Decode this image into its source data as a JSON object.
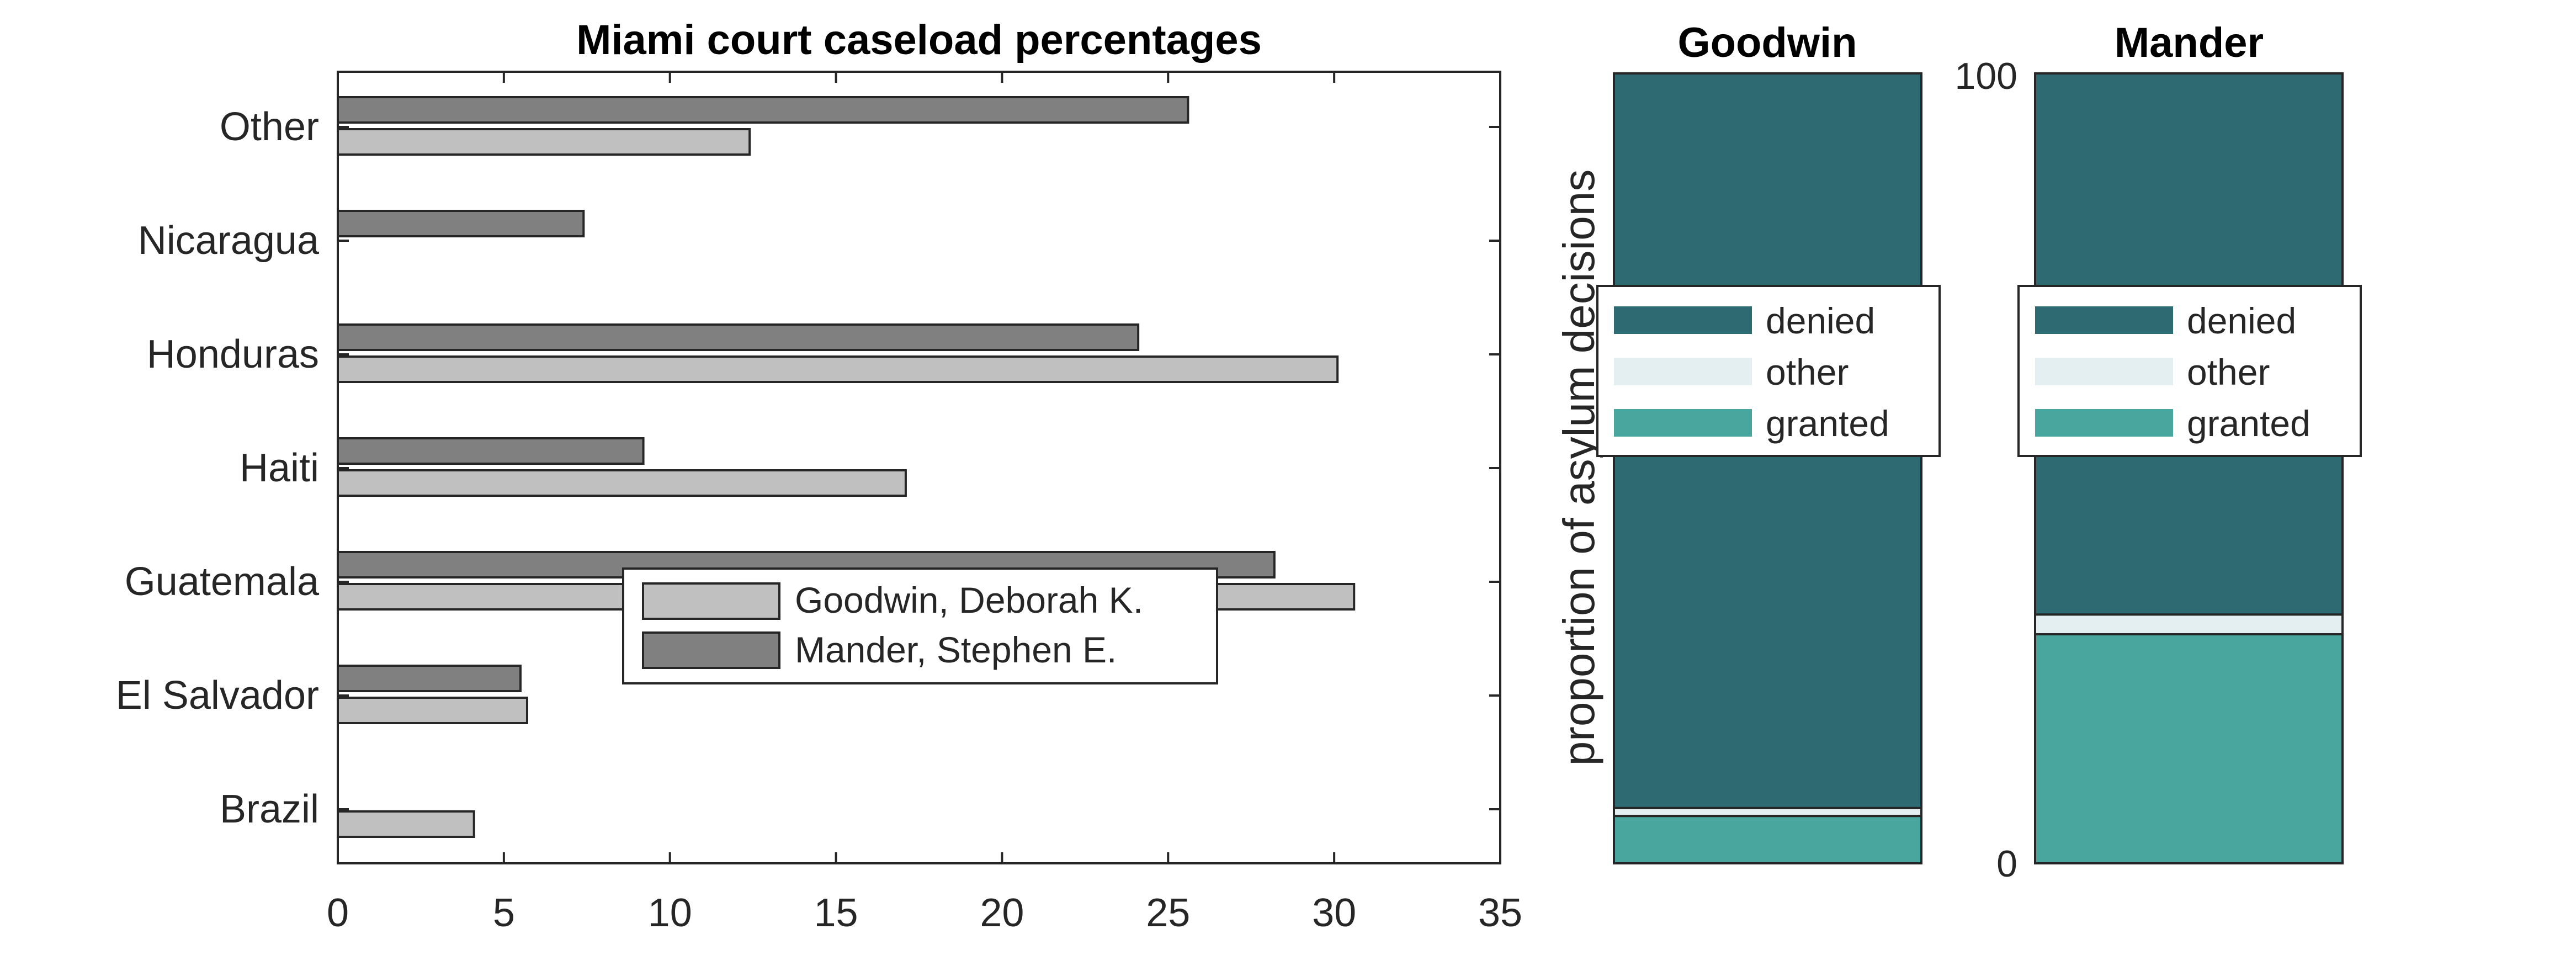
{
  "chart_data": [
    {
      "type": "bar",
      "orientation": "horizontal",
      "title": "Miami court caseload percentages",
      "xlabel": "",
      "ylabel": "",
      "categories": [
        "Brazil",
        "El Salvador",
        "Guatemala",
        "Haiti",
        "Honduras",
        "Nicaragua",
        "Other"
      ],
      "series": [
        {
          "name": "Goodwin, Deborah K.",
          "color": "#c0c0c0",
          "values": [
            4.1,
            5.7,
            30.6,
            17.1,
            30.1,
            0,
            12.4
          ]
        },
        {
          "name": "Mander, Stephen E.",
          "color": "#808080",
          "values": [
            0,
            5.5,
            28.2,
            9.2,
            24.1,
            7.4,
            25.6
          ]
        }
      ],
      "xlim": [
        0,
        35
      ],
      "xticks": [
        "0",
        "5",
        "10",
        "15",
        "20",
        "25",
        "30",
        "35"
      ],
      "grid": false,
      "legend_position": "center"
    },
    {
      "type": "bar",
      "stacked": true,
      "ylabel": "proportion of asylum decisions",
      "ylim": [
        0,
        100
      ],
      "yticks": [
        "0",
        "100"
      ],
      "legend": [
        "denied",
        "other",
        "granted"
      ],
      "colors": {
        "denied": "#2d6a71",
        "other": "#e3eff0",
        "granted": "#48a69e"
      },
      "panels": [
        {
          "title": "Goodwin",
          "granted": 6,
          "other": 1,
          "denied": 93
        },
        {
          "title": "Mander",
          "granted": 29,
          "other": 2.5,
          "denied": 68.5
        }
      ],
      "legend_position": "upper-center"
    }
  ]
}
